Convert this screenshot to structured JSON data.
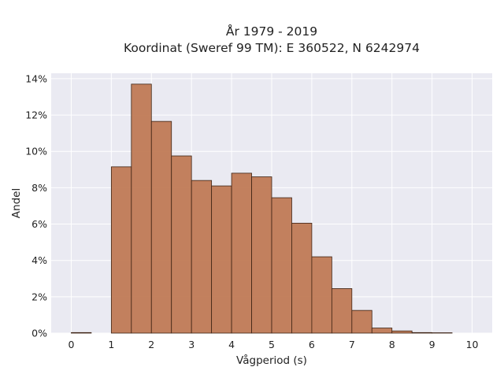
{
  "chart_data": {
    "type": "bar",
    "title_line1": "År 1979 - 2019",
    "title_line2": "Koordinat (Sweref 99 TM): E 360522, N 6242974",
    "xlabel": "Vågperiod (s)",
    "ylabel": "Andel",
    "xlim": [
      -0.5,
      10.5
    ],
    "ylim": [
      0,
      14.3
    ],
    "xticks": [
      "0",
      "1",
      "2",
      "3",
      "4",
      "5",
      "6",
      "7",
      "8",
      "9",
      "10"
    ],
    "yticks": [
      "0%",
      "2%",
      "4%",
      "6%",
      "8%",
      "10%",
      "12%",
      "14%"
    ],
    "grid": true,
    "bin_width": 0.5,
    "bins": [
      {
        "x0": 0.0,
        "value": 0.03
      },
      {
        "x0": 0.5,
        "value": 0.0
      },
      {
        "x0": 1.0,
        "value": 9.15
      },
      {
        "x0": 1.5,
        "value": 13.7
      },
      {
        "x0": 2.0,
        "value": 11.65
      },
      {
        "x0": 2.5,
        "value": 9.75
      },
      {
        "x0": 3.0,
        "value": 8.4
      },
      {
        "x0": 3.5,
        "value": 8.1
      },
      {
        "x0": 4.0,
        "value": 8.8
      },
      {
        "x0": 4.5,
        "value": 8.6
      },
      {
        "x0": 5.0,
        "value": 7.45
      },
      {
        "x0": 5.5,
        "value": 6.05
      },
      {
        "x0": 6.0,
        "value": 4.2
      },
      {
        "x0": 6.5,
        "value": 2.45
      },
      {
        "x0": 7.0,
        "value": 1.25
      },
      {
        "x0": 7.5,
        "value": 0.28
      },
      {
        "x0": 8.0,
        "value": 0.12
      },
      {
        "x0": 8.5,
        "value": 0.03
      },
      {
        "x0": 9.0,
        "value": 0.02
      }
    ],
    "colors": {
      "bar_fill": "#c07a55",
      "bar_edge": "#3d2314",
      "plot_bg": "#eaeaf2",
      "grid": "#ffffff"
    }
  }
}
